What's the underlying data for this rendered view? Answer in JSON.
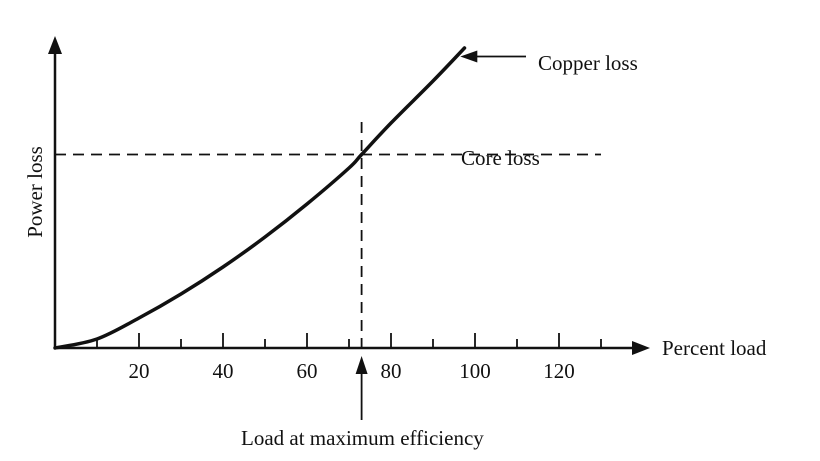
{
  "chart_data": {
    "type": "line",
    "title": "",
    "xlabel": "Percent load",
    "ylabel": "Power loss",
    "xlim": [
      0,
      135
    ],
    "ylim": [
      0,
      100
    ],
    "x_ticks": [
      20,
      40,
      60,
      80,
      100,
      120
    ],
    "x_minor_ticks": [
      10,
      30,
      50,
      70,
      90,
      110,
      130
    ],
    "grid": false,
    "series": [
      {
        "name": "Copper loss",
        "style": "solid",
        "x": [
          0,
          10,
          20,
          30,
          40,
          50,
          60,
          70,
          73,
          80,
          90,
          97.5
        ],
        "y": [
          0,
          3,
          10,
          18,
          27,
          37,
          48,
          60,
          64.5,
          75,
          89,
          100
        ]
      },
      {
        "name": "Core loss",
        "style": "dashed",
        "x": [
          0,
          130
        ],
        "y": [
          64.5,
          64.5
        ]
      }
    ],
    "annotations": [
      {
        "text": "Copper loss",
        "target": "Copper loss"
      },
      {
        "text": "Core loss",
        "target": "Core loss"
      },
      {
        "text": "Load at maximum efficiency",
        "x": 73
      }
    ],
    "colors": {
      "ink": "#111111"
    }
  }
}
